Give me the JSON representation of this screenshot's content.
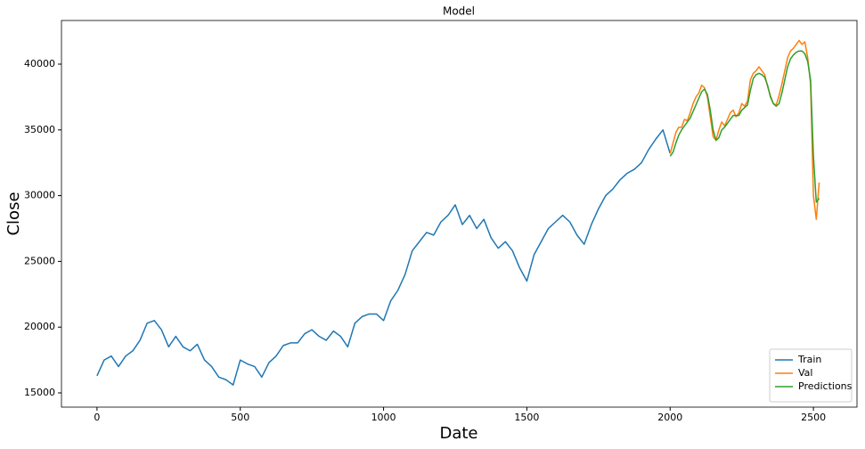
{
  "chart_data": {
    "type": "line",
    "title": "Model",
    "x_label": "Date",
    "y_label": "Close",
    "xlim": [
      -124,
      2652
    ],
    "ylim": [
      13916,
      43320
    ],
    "xticks": [
      0,
      500,
      1000,
      1500,
      2000,
      2500
    ],
    "yticks": [
      15000,
      20000,
      25000,
      30000,
      35000,
      40000
    ],
    "legend": "lower right",
    "series": [
      {
        "name": "Train",
        "color": "#1f77b4",
        "x": [
          0,
          25,
          50,
          75,
          100,
          125,
          150,
          175,
          200,
          225,
          250,
          275,
          300,
          325,
          350,
          375,
          400,
          425,
          450,
          475,
          500,
          525,
          550,
          575,
          600,
          625,
          650,
          675,
          700,
          725,
          750,
          775,
          800,
          825,
          850,
          875,
          900,
          925,
          950,
          975,
          1000,
          1025,
          1050,
          1075,
          1100,
          1125,
          1150,
          1175,
          1200,
          1225,
          1250,
          1275,
          1300,
          1325,
          1350,
          1375,
          1400,
          1425,
          1450,
          1475,
          1500,
          1525,
          1550,
          1575,
          1600,
          1625,
          1650,
          1675,
          1700,
          1725,
          1750,
          1775,
          1800,
          1825,
          1850,
          1875,
          1900,
          1925,
          1950,
          1975,
          2000
        ],
        "values": [
          16300,
          17500,
          17800,
          17000,
          17800,
          18200,
          19000,
          20300,
          20500,
          19800,
          18500,
          19300,
          18500,
          18200,
          18700,
          17500,
          17000,
          16200,
          16000,
          15600,
          17500,
          17200,
          17000,
          16200,
          17300,
          17800,
          18600,
          18800,
          18800,
          19500,
          19800,
          19300,
          19000,
          19700,
          19300,
          18500,
          20300,
          20800,
          21000,
          21000,
          20500,
          22000,
          22800,
          24000,
          25800,
          26500,
          27200,
          27000,
          28000,
          28500,
          29300,
          27800,
          28500,
          27500,
          28200,
          26800,
          26000,
          26500,
          25800,
          24500,
          23500,
          25500,
          26500,
          27500,
          28000,
          28500,
          28000,
          27000,
          26300,
          27800,
          29000,
          30000,
          30500,
          31200,
          31700,
          32000,
          32500,
          33500,
          34300,
          35000,
          33200
        ]
      },
      {
        "name": "Val",
        "color": "#ff7f0e",
        "x": [
          2000,
          2010,
          2020,
          2030,
          2040,
          2050,
          2060,
          2070,
          2080,
          2090,
          2100,
          2110,
          2120,
          2130,
          2140,
          2150,
          2160,
          2170,
          2180,
          2190,
          2200,
          2210,
          2220,
          2230,
          2240,
          2250,
          2260,
          2270,
          2280,
          2290,
          2300,
          2310,
          2320,
          2330,
          2340,
          2350,
          2360,
          2370,
          2380,
          2390,
          2400,
          2410,
          2420,
          2430,
          2440,
          2450,
          2460,
          2470,
          2480,
          2490,
          2500,
          2510,
          2520
        ],
        "values": [
          33200,
          34000,
          34800,
          35200,
          35200,
          35800,
          35700,
          36300,
          37000,
          37500,
          37800,
          38400,
          38200,
          37500,
          36000,
          34500,
          34200,
          35000,
          35600,
          35300,
          35800,
          36300,
          36500,
          36000,
          36300,
          37000,
          36800,
          37200,
          38800,
          39300,
          39500,
          39800,
          39500,
          39200,
          38300,
          37600,
          37000,
          36900,
          37600,
          38500,
          39500,
          40500,
          41000,
          41200,
          41500,
          41800,
          41500,
          41700,
          40500,
          38500,
          30000,
          28200,
          31000
        ]
      },
      {
        "name": "Predictions",
        "color": "#2ca02c",
        "x": [
          2000,
          2010,
          2020,
          2030,
          2040,
          2050,
          2060,
          2070,
          2080,
          2090,
          2100,
          2110,
          2120,
          2130,
          2140,
          2150,
          2160,
          2170,
          2180,
          2190,
          2200,
          2210,
          2220,
          2230,
          2240,
          2250,
          2260,
          2270,
          2280,
          2290,
          2300,
          2310,
          2320,
          2330,
          2340,
          2350,
          2360,
          2370,
          2380,
          2390,
          2400,
          2410,
          2420,
          2430,
          2440,
          2450,
          2460,
          2470,
          2480,
          2490,
          2500,
          2510,
          2520
        ],
        "values": [
          33000,
          33300,
          34000,
          34600,
          35000,
          35300,
          35600,
          35900,
          36400,
          36900,
          37400,
          37900,
          38100,
          37700,
          36500,
          35000,
          34200,
          34400,
          35000,
          35200,
          35500,
          35800,
          36100,
          36100,
          36100,
          36500,
          36700,
          36900,
          38000,
          38900,
          39200,
          39300,
          39200,
          39000,
          38400,
          37500,
          37000,
          36800,
          37000,
          37800,
          38800,
          39800,
          40400,
          40700,
          40900,
          41000,
          41000,
          40800,
          40200,
          38800,
          33000,
          29500,
          29800
        ]
      }
    ]
  }
}
